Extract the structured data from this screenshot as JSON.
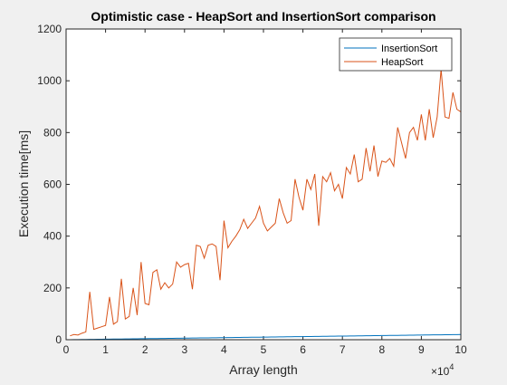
{
  "chart_data": {
    "type": "line",
    "title": "Optimistic case - HeapSort and InsertionSort comparison",
    "xlabel": "Array length",
    "ylabel": "Execution time[ms]",
    "xlim": [
      0,
      10
    ],
    "ylim": [
      0,
      1200
    ],
    "x_exponent_label": "×10",
    "x_exponent_power": "4",
    "x_ticks": [
      0,
      1,
      2,
      3,
      4,
      5,
      6,
      7,
      8,
      9,
      10
    ],
    "y_ticks": [
      0,
      200,
      400,
      600,
      800,
      1000,
      1200
    ],
    "grid": false,
    "legend_position": "top-right",
    "x": [
      0.1,
      0.2,
      0.3,
      0.4,
      0.5,
      0.6,
      0.7,
      0.8,
      0.9,
      1.0,
      1.1,
      1.2,
      1.3,
      1.4,
      1.5,
      1.6,
      1.7,
      1.8,
      1.9,
      2.0,
      2.1,
      2.2,
      2.3,
      2.4,
      2.5,
      2.6,
      2.7,
      2.8,
      2.9,
      3.0,
      3.1,
      3.2,
      3.3,
      3.4,
      3.5,
      3.6,
      3.7,
      3.8,
      3.9,
      4.0,
      4.1,
      4.2,
      4.3,
      4.4,
      4.5,
      4.6,
      4.7,
      4.8,
      4.9,
      5.0,
      5.1,
      5.2,
      5.3,
      5.4,
      5.5,
      5.6,
      5.7,
      5.8,
      5.9,
      6.0,
      6.1,
      6.2,
      6.3,
      6.4,
      6.5,
      6.6,
      6.7,
      6.8,
      6.9,
      7.0,
      7.1,
      7.2,
      7.3,
      7.4,
      7.5,
      7.6,
      7.7,
      7.8,
      7.9,
      8.0,
      8.1,
      8.2,
      8.3,
      8.4,
      8.5,
      8.6,
      8.7,
      8.8,
      8.9,
      9.0,
      9.1,
      9.2,
      9.3,
      9.4,
      9.5,
      9.6,
      9.7,
      9.8,
      9.9,
      10.0
    ],
    "series": [
      {
        "name": "InsertionSort",
        "color": "#0072BD",
        "values": [
          0.2,
          0.4,
          0.6,
          0.8,
          1.0,
          1.2,
          1.4,
          1.6,
          1.8,
          2.0,
          2.2,
          2.4,
          2.6,
          2.8,
          3.0,
          3.2,
          3.4,
          3.6,
          3.8,
          4.0,
          4.2,
          4.4,
          4.6,
          4.8,
          5.0,
          5.2,
          5.4,
          5.6,
          5.8,
          6.0,
          6.2,
          6.4,
          6.6,
          6.8,
          7.0,
          7.2,
          7.4,
          7.6,
          7.8,
          8.0,
          8.2,
          8.4,
          8.6,
          8.8,
          9.0,
          9.2,
          9.4,
          9.6,
          9.8,
          10.0,
          10.2,
          10.4,
          10.6,
          10.8,
          11.0,
          11.2,
          11.4,
          11.6,
          11.8,
          12.0,
          12.2,
          12.4,
          12.6,
          12.8,
          13.0,
          13.2,
          13.4,
          13.6,
          13.8,
          14.0,
          14.2,
          14.4,
          14.6,
          14.8,
          15.0,
          15.2,
          15.4,
          15.6,
          15.8,
          16.0,
          16.2,
          16.4,
          16.6,
          16.8,
          17.0,
          17.2,
          17.4,
          17.6,
          17.8,
          18.0,
          18.2,
          18.4,
          18.6,
          18.8,
          19.0,
          19.2,
          19.4,
          19.6,
          19.8,
          20.0
        ]
      },
      {
        "name": "HeapSort",
        "color": "#D95319",
        "values": [
          15,
          20,
          18,
          25,
          30,
          185,
          40,
          45,
          50,
          55,
          165,
          60,
          70,
          235,
          80,
          90,
          200,
          95,
          300,
          140,
          135,
          260,
          270,
          195,
          220,
          200,
          215,
          300,
          280,
          290,
          295,
          195,
          365,
          360,
          315,
          365,
          370,
          360,
          230,
          460,
          355,
          380,
          400,
          425,
          465,
          430,
          450,
          470,
          515,
          450,
          420,
          435,
          450,
          545,
          490,
          450,
          460,
          620,
          550,
          500,
          620,
          580,
          640,
          440,
          630,
          610,
          645,
          575,
          600,
          545,
          665,
          640,
          715,
          610,
          620,
          740,
          650,
          750,
          630,
          690,
          685,
          700,
          670,
          820,
          760,
          700,
          800,
          820,
          770,
          870,
          770,
          890,
          780,
          860,
          1045,
          860,
          855,
          955,
          890,
          880
        ]
      }
    ]
  }
}
